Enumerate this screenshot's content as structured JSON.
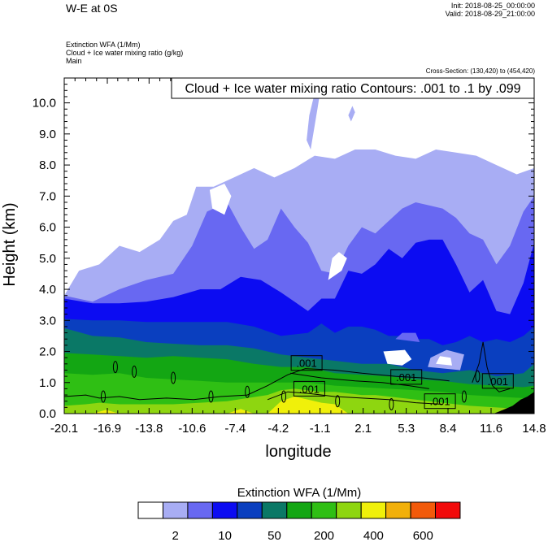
{
  "header": {
    "title": "W-E at 0S",
    "init": "Init: 2018-08-25_00:00:00",
    "valid": "Valid: 2018-08-29_21:00:00",
    "field1": "Extinction WFA   (1/Mm)",
    "field2": "Cloud + Ice water mixing ratio   (g/kg)",
    "field3": "Main",
    "cross_section": "Cross-Section: (130,420) to (454,420)"
  },
  "chart_data": {
    "type": "heatmap",
    "title": "W-E at 0S",
    "xlabel": "longitude",
    "ylabel": "Height (km)",
    "xlim": [
      -20.1,
      14.8
    ],
    "ylim": [
      0.0,
      10.8
    ],
    "x_ticks": [
      "-20.1",
      "-16.9",
      "-13.8",
      "-10.6",
      "-7.4",
      "-4.2",
      "-1.1",
      "2.1",
      "5.3",
      "8.4",
      "11.6",
      "14.8"
    ],
    "x_tick_values": [
      -20.1,
      -16.9,
      -13.8,
      -10.6,
      -7.4,
      -4.2,
      -1.1,
      2.1,
      5.3,
      8.4,
      11.6,
      14.8
    ],
    "y_ticks": [
      "0.0",
      "1.0",
      "2.0",
      "3.0",
      "4.0",
      "5.0",
      "6.0",
      "7.0",
      "8.0",
      "9.0",
      "10.0"
    ],
    "y_tick_values": [
      0,
      1,
      2,
      3,
      4,
      5,
      6,
      7,
      8,
      9,
      10
    ],
    "contour_title": "Cloud + Ice water mixing ratio Contours: .001 to .1 by .099",
    "contour_labels": [
      {
        "text": ".001",
        "x": -2.1,
        "y": 1.63
      },
      {
        "text": ".001",
        "x": -1.9,
        "y": 0.8
      },
      {
        "text": ".001",
        "x": 5.3,
        "y": 1.18
      },
      {
        "text": ".001",
        "x": 7.8,
        "y": 0.4
      },
      {
        "text": ".001",
        "x": 12.1,
        "y": 1.05
      }
    ],
    "colorbar": {
      "title": "Extinction WFA  (1/Mm)",
      "labels": [
        "2",
        "10",
        "50",
        "200",
        "400",
        "600"
      ],
      "label_boundary_index": [
        1,
        3,
        5,
        7,
        9,
        11
      ],
      "colors": [
        "#ffffff",
        "#a8adf4",
        "#6868f2",
        "#0c0cf2",
        "#0a3fbf",
        "#0a7866",
        "#13a613",
        "#2fbf14",
        "#8ed610",
        "#f0f00a",
        "#f2b00a",
        "#f25a0a",
        "#f20a0a"
      ]
    },
    "bands": [
      {
        "level": 1,
        "top": [
          [
            -20.1,
            3.8
          ],
          [
            -19.0,
            4.6
          ],
          [
            -17.5,
            4.8
          ],
          [
            -16.0,
            5.4
          ],
          [
            -14.5,
            5.2
          ],
          [
            -13.0,
            5.6
          ],
          [
            -12.0,
            6.2
          ],
          [
            -11.0,
            6.4
          ],
          [
            -10.3,
            7.3
          ],
          [
            -9.0,
            7.3
          ],
          [
            -7.5,
            7.6
          ],
          [
            -6.0,
            7.9
          ],
          [
            -4.5,
            7.6
          ],
          [
            -3.0,
            7.9
          ],
          [
            -1.5,
            8.3
          ],
          [
            0.0,
            8.2
          ],
          [
            1.5,
            8.5
          ],
          [
            3.0,
            8.5
          ],
          [
            4.5,
            8.3
          ],
          [
            6.0,
            8.2
          ],
          [
            7.5,
            8.5
          ],
          [
            9.0,
            8.4
          ],
          [
            10.5,
            8.3
          ],
          [
            12.0,
            8.0
          ],
          [
            13.5,
            7.7
          ],
          [
            14.8,
            7.9
          ]
        ]
      },
      {
        "level": 2,
        "top": [
          [
            -20.1,
            3.8
          ],
          [
            -18.0,
            3.6
          ],
          [
            -16.0,
            4.0
          ],
          [
            -14.0,
            4.3
          ],
          [
            -12.0,
            4.5
          ],
          [
            -10.6,
            5.4
          ],
          [
            -9.5,
            6.5
          ],
          [
            -8.0,
            6.8
          ],
          [
            -7.0,
            6.0
          ],
          [
            -6.0,
            5.3
          ],
          [
            -5.0,
            5.6
          ],
          [
            -4.0,
            6.6
          ],
          [
            -3.0,
            6.0
          ],
          [
            -2.0,
            5.5
          ],
          [
            -1.0,
            4.6
          ],
          [
            0.0,
            4.5
          ],
          [
            1.0,
            5.4
          ],
          [
            2.0,
            6.0
          ],
          [
            3.0,
            5.8
          ],
          [
            4.0,
            6.2
          ],
          [
            5.0,
            6.6
          ],
          [
            6.0,
            6.8
          ],
          [
            7.0,
            6.7
          ],
          [
            8.0,
            6.6
          ],
          [
            9.0,
            6.3
          ],
          [
            10.0,
            5.8
          ],
          [
            11.0,
            5.6
          ],
          [
            12.0,
            4.8
          ],
          [
            13.0,
            5.4
          ],
          [
            14.0,
            6.5
          ],
          [
            14.8,
            7.0
          ]
        ]
      },
      {
        "level": 3,
        "top": [
          [
            -20.1,
            3.7
          ],
          [
            -18.0,
            3.55
          ],
          [
            -16.0,
            3.55
          ],
          [
            -14.0,
            3.6
          ],
          [
            -12.0,
            3.75
          ],
          [
            -10.0,
            4.0
          ],
          [
            -8.5,
            4.0
          ],
          [
            -7.0,
            4.4
          ],
          [
            -5.5,
            4.3
          ],
          [
            -4.0,
            3.9
          ],
          [
            -3.0,
            3.6
          ],
          [
            -2.0,
            3.3
          ],
          [
            -1.0,
            3.7
          ],
          [
            0.0,
            3.7
          ],
          [
            1.0,
            4.6
          ],
          [
            2.0,
            4.5
          ],
          [
            3.0,
            4.8
          ],
          [
            4.0,
            5.3
          ],
          [
            5.0,
            5.0
          ],
          [
            6.0,
            5.5
          ],
          [
            7.0,
            5.6
          ],
          [
            8.0,
            5.6
          ],
          [
            9.0,
            4.8
          ],
          [
            10.0,
            3.9
          ],
          [
            11.0,
            4.3
          ],
          [
            12.0,
            3.3
          ],
          [
            13.0,
            3.2
          ],
          [
            14.0,
            4.2
          ],
          [
            14.8,
            5.5
          ]
        ]
      },
      {
        "level": 4,
        "top": [
          [
            -20.1,
            3.05
          ],
          [
            -18.0,
            3.0
          ],
          [
            -16.0,
            3.0
          ],
          [
            -14.0,
            2.95
          ],
          [
            -12.0,
            2.95
          ],
          [
            -10.0,
            2.95
          ],
          [
            -8.0,
            2.95
          ],
          [
            -6.0,
            2.8
          ],
          [
            -4.0,
            2.5
          ],
          [
            -2.0,
            2.6
          ],
          [
            -1.0,
            2.9
          ],
          [
            0.0,
            2.6
          ],
          [
            1.0,
            2.8
          ],
          [
            2.0,
            2.8
          ],
          [
            3.0,
            2.7
          ],
          [
            4.0,
            2.5
          ],
          [
            5.0,
            2.5
          ],
          [
            6.0,
            2.4
          ],
          [
            7.0,
            2.4
          ],
          [
            8.0,
            2.2
          ],
          [
            9.0,
            2.3
          ],
          [
            10.0,
            2.5
          ],
          [
            11.0,
            2.3
          ],
          [
            12.0,
            2.4
          ],
          [
            13.0,
            2.3
          ],
          [
            14.0,
            2.5
          ],
          [
            14.8,
            2.8
          ]
        ]
      },
      {
        "level": 5,
        "top": [
          [
            -20.1,
            2.75
          ],
          [
            -18.0,
            2.5
          ],
          [
            -16.0,
            2.45
          ],
          [
            -14.0,
            2.3
          ],
          [
            -12.0,
            2.25
          ],
          [
            -10.0,
            2.2
          ],
          [
            -8.0,
            2.2
          ],
          [
            -6.0,
            2.1
          ],
          [
            -4.0,
            1.9
          ],
          [
            -2.0,
            1.8
          ],
          [
            0.0,
            1.7
          ],
          [
            2.0,
            1.6
          ],
          [
            4.0,
            1.6
          ],
          [
            6.0,
            1.4
          ],
          [
            8.0,
            1.3
          ],
          [
            10.0,
            1.4
          ],
          [
            12.0,
            1.2
          ],
          [
            14.0,
            1.3
          ],
          [
            14.8,
            1.6
          ]
        ]
      },
      {
        "level": 6,
        "top": [
          [
            -20.1,
            1.95
          ],
          [
            -18.0,
            1.9
          ],
          [
            -16.0,
            1.85
          ],
          [
            -14.0,
            1.8
          ],
          [
            -12.0,
            1.85
          ],
          [
            -10.0,
            1.8
          ],
          [
            -8.0,
            1.75
          ],
          [
            -6.0,
            1.6
          ],
          [
            -4.0,
            1.5
          ],
          [
            -2.0,
            1.5
          ],
          [
            0.0,
            1.3
          ],
          [
            2.0,
            1.25
          ],
          [
            4.0,
            1.2
          ],
          [
            6.0,
            1.1
          ],
          [
            8.0,
            1.05
          ],
          [
            10.0,
            0.95
          ],
          [
            12.0,
            0.9
          ],
          [
            14.0,
            0.85
          ],
          [
            14.8,
            0.9
          ]
        ]
      },
      {
        "level": 7,
        "top": [
          [
            -20.1,
            1.3
          ],
          [
            -18.0,
            1.25
          ],
          [
            -16.0,
            1.3
          ],
          [
            -14.0,
            1.15
          ],
          [
            -12.0,
            1.1
          ],
          [
            -10.0,
            1.05
          ],
          [
            -8.0,
            1.0
          ],
          [
            -6.0,
            1.0
          ],
          [
            -4.0,
            1.0
          ],
          [
            -2.0,
            1.0
          ],
          [
            0.0,
            0.9
          ],
          [
            2.0,
            0.85
          ],
          [
            4.0,
            0.8
          ],
          [
            6.0,
            0.75
          ],
          [
            8.0,
            0.7
          ],
          [
            10.0,
            0.6
          ],
          [
            12.0,
            0.55
          ],
          [
            14.0,
            0.5
          ],
          [
            14.8,
            0.5
          ]
        ]
      },
      {
        "level": 8,
        "top": [
          [
            -20.1,
            0.25
          ],
          [
            -18.5,
            0.3
          ],
          [
            -17.5,
            0.35
          ],
          [
            -16.0,
            0.3
          ],
          [
            -14.0,
            0.3
          ],
          [
            -12.0,
            0.3
          ],
          [
            -10.0,
            0.35
          ],
          [
            -8.0,
            0.4
          ],
          [
            -6.5,
            0.5
          ],
          [
            -5.0,
            0.6
          ],
          [
            -4.0,
            0.75
          ],
          [
            -3.0,
            0.8
          ],
          [
            -2.0,
            0.75
          ],
          [
            -1.0,
            0.7
          ],
          [
            0.0,
            0.7
          ],
          [
            1.0,
            0.65
          ],
          [
            2.0,
            0.6
          ],
          [
            3.0,
            0.6
          ],
          [
            4.0,
            0.55
          ],
          [
            5.0,
            0.5
          ],
          [
            6.0,
            0.45
          ],
          [
            7.0,
            0.4
          ],
          [
            8.0,
            0.35
          ],
          [
            10.0,
            0.25
          ],
          [
            12.0,
            0.2
          ],
          [
            14.0,
            0.15
          ],
          [
            14.8,
            0.1
          ]
        ]
      },
      {
        "level": 9,
        "top": [
          [
            -20.1,
            0.0
          ],
          [
            -18.0,
            0.0
          ],
          [
            -17.0,
            0.12
          ],
          [
            -16.0,
            0.0
          ],
          [
            -8.0,
            0.0
          ],
          [
            -7.0,
            0.15
          ],
          [
            -6.0,
            0.0
          ],
          [
            -5.0,
            0.0
          ],
          [
            -4.0,
            0.4
          ],
          [
            -3.0,
            0.55
          ],
          [
            -2.0,
            0.45
          ],
          [
            -1.0,
            0.35
          ],
          [
            0.0,
            0.3
          ],
          [
            1.0,
            0.0
          ],
          [
            3.0,
            0.0
          ],
          [
            14.8,
            0.0
          ]
        ]
      }
    ],
    "patches": [
      {
        "level": 1,
        "pts": [
          [
            -1.8,
            8.5
          ],
          [
            -1.3,
            9.8
          ],
          [
            -1.0,
            10.6
          ],
          [
            -1.4,
            10.5
          ],
          [
            -1.9,
            9.6
          ],
          [
            -2.1,
            8.8
          ]
        ]
      },
      {
        "level": 1,
        "pts": [
          [
            1.2,
            9.4
          ],
          [
            1.5,
            9.7
          ],
          [
            1.3,
            9.9
          ],
          [
            1.0,
            9.6
          ]
        ]
      },
      {
        "level": 0,
        "pts": [
          [
            -9.3,
            7.2
          ],
          [
            -8.2,
            7.4
          ],
          [
            -7.7,
            7.0
          ],
          [
            -8.2,
            6.4
          ],
          [
            -9.1,
            6.6
          ]
        ]
      },
      {
        "level": 0,
        "pts": [
          [
            -0.5,
            4.3
          ],
          [
            0.5,
            4.6
          ],
          [
            0.9,
            5.0
          ],
          [
            0.3,
            5.2
          ],
          [
            -0.2,
            5.0
          ]
        ]
      },
      {
        "level": 1,
        "pts": [
          [
            2.5,
            6.6
          ],
          [
            3.0,
            6.0
          ],
          [
            3.6,
            6.1
          ],
          [
            3.3,
            6.7
          ],
          [
            2.8,
            7.0
          ]
        ]
      },
      {
        "level": 0,
        "pts": [
          [
            3.6,
            2.0
          ],
          [
            5.2,
            2.05
          ],
          [
            5.7,
            1.75
          ],
          [
            5.0,
            1.55
          ],
          [
            3.9,
            1.6
          ]
        ]
      },
      {
        "level": 1,
        "pts": [
          [
            6.9,
            1.5
          ],
          [
            9.3,
            1.4
          ],
          [
            9.6,
            1.9
          ],
          [
            8.3,
            2.05
          ],
          [
            7.1,
            1.8
          ]
        ]
      },
      {
        "level": 0,
        "pts": [
          [
            7.5,
            1.6
          ],
          [
            8.7,
            1.55
          ],
          [
            8.6,
            1.8
          ],
          [
            7.8,
            1.85
          ]
        ]
      },
      {
        "level": 2,
        "pts": [
          [
            4.5,
            2.4
          ],
          [
            6.3,
            2.3
          ],
          [
            6.0,
            2.6
          ],
          [
            5.0,
            2.6
          ]
        ]
      }
    ],
    "ground": [
      [
        11.8,
        0.0
      ],
      [
        12.5,
        0.12
      ],
      [
        13.2,
        0.25
      ],
      [
        13.8,
        0.45
      ],
      [
        14.3,
        0.55
      ],
      [
        14.8,
        0.7
      ],
      [
        14.8,
        0.0
      ]
    ]
  }
}
